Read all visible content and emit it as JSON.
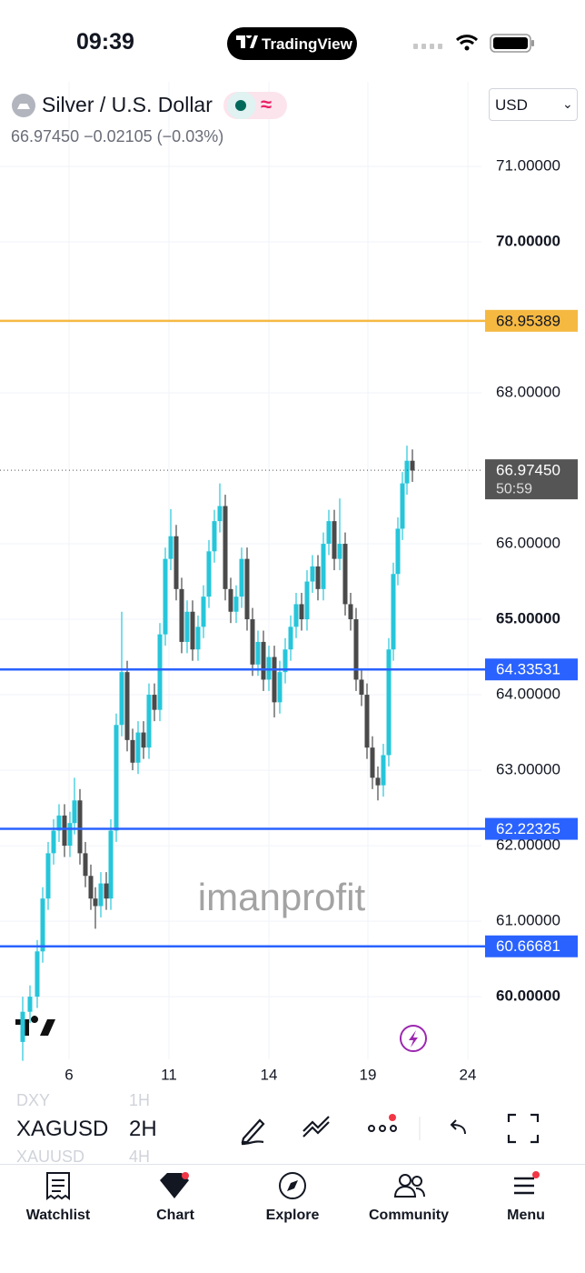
{
  "status_bar": {
    "time": "09:39",
    "app": "TradingView"
  },
  "header": {
    "title": "Silver / U.S. Dollar",
    "price": "66.97450",
    "change": "−0.02105 (−0.03%)",
    "currency": "USD"
  },
  "chart_data": {
    "type": "candlestick",
    "x": [
      25,
      33,
      41,
      47,
      53,
      59,
      65,
      71,
      77,
      82,
      88,
      94,
      100,
      105,
      111,
      117,
      122,
      128,
      134,
      140,
      146,
      152,
      158,
      164,
      170,
      176,
      182,
      188,
      194,
      200,
      206,
      212,
      218,
      224,
      230,
      236,
      242,
      248,
      254,
      260,
      266,
      272,
      278,
      284,
      290,
      296,
      302,
      308,
      314,
      320,
      326,
      332,
      338,
      344,
      350,
      356,
      362,
      368,
      374,
      380,
      386,
      392,
      398,
      404,
      410,
      416,
      422,
      428,
      433,
      438,
      443,
      448,
      454
    ],
    "open": [
      59.4,
      59.8,
      60.0,
      60.6,
      61.3,
      61.9,
      62.2,
      62.4,
      62.0,
      62.3,
      62.6,
      61.9,
      61.6,
      61.3,
      61.2,
      61.5,
      61.3,
      62.2,
      63.6,
      64.3,
      63.4,
      63.1,
      63.5,
      63.3,
      64.0,
      63.8,
      64.8,
      65.8,
      66.1,
      65.4,
      64.7,
      65.1,
      64.6,
      64.9,
      65.3,
      65.9,
      66.3,
      66.5,
      65.4,
      65.1,
      65.3,
      65.8,
      65.0,
      64.4,
      64.7,
      64.2,
      64.5,
      63.9,
      64.3,
      64.6,
      64.9,
      65.2,
      65.0,
      65.5,
      65.7,
      65.4,
      66.0,
      66.3,
      65.8,
      66.0,
      65.2,
      65.0,
      64.2,
      64.0,
      63.3,
      62.9,
      62.8,
      63.2,
      64.6,
      65.6,
      66.2,
      66.8,
      67.1
    ],
    "high": [
      60.0,
      60.15,
      60.75,
      61.45,
      62.05,
      62.35,
      62.55,
      62.55,
      62.45,
      62.9,
      62.75,
      62.05,
      61.75,
      61.45,
      61.65,
      61.65,
      62.35,
      63.75,
      65.1,
      64.45,
      63.55,
      63.65,
      63.65,
      64.15,
      64.15,
      64.95,
      65.95,
      66.46,
      66.25,
      65.55,
      65.25,
      65.25,
      65.05,
      65.45,
      66.05,
      66.45,
      66.8,
      66.65,
      65.55,
      65.45,
      65.95,
      65.95,
      65.15,
      64.85,
      64.85,
      64.65,
      64.65,
      64.45,
      64.75,
      65.05,
      65.35,
      65.35,
      65.65,
      65.85,
      65.85,
      66.15,
      66.45,
      66.45,
      66.6,
      66.15,
      65.35,
      65.15,
      64.35,
      64.15,
      63.45,
      63.05,
      63.35,
      64.75,
      65.75,
      66.35,
      66.95,
      67.3,
      67.25
    ],
    "low": [
      59.15,
      59.65,
      59.85,
      60.45,
      61.15,
      61.75,
      62.05,
      61.85,
      61.85,
      62.15,
      61.75,
      61.45,
      61.15,
      60.9,
      61.05,
      61.15,
      61.15,
      62.05,
      63.45,
      63.25,
      63.0,
      62.95,
      63.15,
      63.15,
      63.65,
      63.65,
      64.65,
      65.65,
      65.25,
      64.55,
      64.55,
      64.45,
      64.45,
      64.75,
      65.15,
      65.75,
      66.15,
      65.25,
      64.95,
      64.95,
      65.15,
      64.85,
      64.25,
      64.25,
      64.05,
      64.05,
      63.7,
      63.75,
      64.15,
      64.45,
      64.75,
      64.85,
      64.85,
      65.35,
      65.25,
      65.25,
      65.85,
      65.65,
      65.65,
      65.05,
      64.85,
      64.05,
      63.85,
      63.15,
      62.75,
      62.6,
      62.65,
      63.05,
      64.45,
      65.45,
      66.05,
      66.65,
      66.82
    ],
    "close": [
      59.8,
      60.0,
      60.6,
      61.3,
      61.9,
      62.2,
      62.4,
      62.0,
      62.3,
      62.6,
      61.9,
      61.6,
      61.3,
      61.2,
      61.5,
      61.3,
      62.2,
      63.6,
      64.3,
      63.4,
      63.1,
      63.5,
      63.3,
      64.0,
      63.8,
      64.8,
      65.8,
      66.1,
      65.4,
      64.7,
      65.1,
      64.6,
      64.9,
      65.3,
      65.9,
      66.3,
      66.5,
      65.4,
      65.1,
      65.3,
      65.8,
      65.0,
      64.4,
      64.7,
      64.2,
      64.5,
      63.9,
      64.3,
      64.6,
      64.9,
      65.2,
      65.0,
      65.5,
      65.7,
      65.4,
      66.0,
      66.3,
      65.8,
      66.0,
      65.2,
      65.0,
      64.2,
      64.0,
      63.3,
      62.9,
      62.8,
      63.2,
      64.6,
      65.6,
      66.2,
      66.8,
      67.1,
      66.97
    ],
    "up_color": "#26c6da",
    "down_color": "#4a4a4a",
    "xlim": [
      0,
      530
    ],
    "ylim": [
      59.17,
      72.12
    ],
    "xticks": [
      {
        "value": 76,
        "label": "6"
      },
      {
        "value": 186,
        "label": "11"
      },
      {
        "value": 296,
        "label": "14"
      },
      {
        "value": 405,
        "label": "19"
      },
      {
        "value": 515,
        "label": "24"
      }
    ],
    "yticks": [
      {
        "value": 71,
        "label": "71.00000"
      },
      {
        "value": 70,
        "label": "70.00000"
      },
      {
        "value": 68,
        "label": "68.00000"
      },
      {
        "value": 66,
        "label": "66.00000"
      },
      {
        "value": 65,
        "label": "65.00000"
      },
      {
        "value": 64,
        "label": "64.00000"
      },
      {
        "value": 63,
        "label": "63.00000"
      },
      {
        "value": 62,
        "label": "62.00000"
      },
      {
        "value": 61,
        "label": "61.00000"
      },
      {
        "value": 60,
        "label": "60.00000"
      }
    ],
    "grid": true,
    "levels": [
      {
        "value": 68.95389,
        "color": "#f5b942"
      },
      {
        "value": 64.33531,
        "color": "#2962ff"
      },
      {
        "value": 62.22325,
        "color": "#2962ff"
      },
      {
        "value": 60.66681,
        "color": "#2962ff"
      }
    ],
    "last_price": {
      "value": 66.9745,
      "label": "66.97450",
      "countdown": "50:59"
    },
    "watermark": "imanprofit"
  },
  "toolbar": {
    "symbols": [
      "DXY",
      "XAGUSD",
      "XAUUSD"
    ],
    "intervals": [
      "1H",
      "2H",
      "4H"
    ]
  },
  "tabs": [
    "Watchlist",
    "Chart",
    "Explore",
    "Community",
    "Menu"
  ]
}
